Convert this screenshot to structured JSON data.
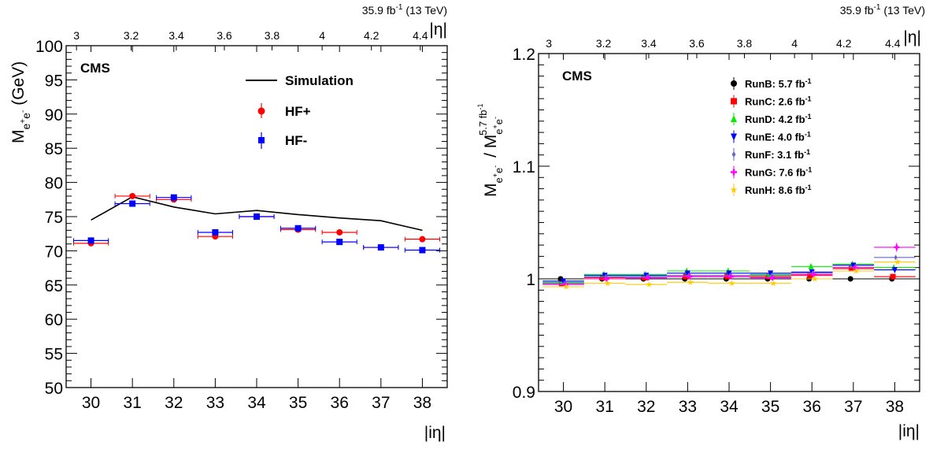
{
  "chart_data": [
    {
      "type": "scatter",
      "experiment_label": "CMS",
      "lumi_label": "35.9 fb",
      "lumi_exp": "-1",
      "energy_label": "(13 TeV)",
      "xlabel": "|iη|",
      "top_xlabel": "|η|",
      "ylabel_main": "M",
      "ylabel_sub": "e",
      "ylabel_sup1": "+",
      "ylabel_sub2": "e",
      "ylabel_sup2": "-",
      "ylabel_units": "(GeV)",
      "xlim": [
        29.4,
        38.6
      ],
      "ylim": [
        50,
        100
      ],
      "x_ticks": [
        "30",
        "31",
        "32",
        "33",
        "34",
        "35",
        "36",
        "37",
        "38"
      ],
      "y_ticks": [
        "50",
        "55",
        "60",
        "65",
        "70",
        "75",
        "80",
        "85",
        "90",
        "95",
        "100"
      ],
      "top_ticks": [
        "3",
        "3.2",
        "3.4",
        "3.6",
        "3.8",
        "4",
        "4.2",
        "4.4"
      ],
      "top_tick_x": [
        29.65,
        30.97,
        32.06,
        33.22,
        34.37,
        35.58,
        36.77,
        37.95
      ],
      "x": [
        30,
        31,
        32,
        33,
        34,
        35,
        36,
        37,
        38
      ],
      "series": [
        {
          "name": "Simulation",
          "type": "line",
          "color": "#000000",
          "values": [
            74.5,
            77.9,
            76.4,
            75.4,
            75.9,
            75.3,
            74.8,
            74.4,
            73.0
          ]
        },
        {
          "name": "HF+",
          "type": "points",
          "marker": "circle",
          "color": "#ff0000",
          "values": [
            71.1,
            78.0,
            77.5,
            72.1,
            75.0,
            73.1,
            72.7,
            70.5,
            71.7
          ]
        },
        {
          "name": "HF-",
          "type": "points",
          "marker": "square",
          "color": "#0000ff",
          "values": [
            71.5,
            76.9,
            77.8,
            72.7,
            75.0,
            73.3,
            71.3,
            70.5,
            70.1
          ]
        }
      ]
    },
    {
      "type": "scatter",
      "experiment_label": "CMS",
      "lumi_label": "35.9 fb",
      "lumi_exp": "-1",
      "energy_label": "(13 TeV)",
      "xlabel": "|iη|",
      "top_xlabel": "|η|",
      "ylabel_num": "M",
      "ylabel_den": "M",
      "ylabel_den_sup": "5.7 fb",
      "ylabel_den_sup_exp": "-1",
      "xlim": [
        29.4,
        38.6
      ],
      "ylim": [
        0.9,
        1.2
      ],
      "x_ticks": [
        "30",
        "31",
        "32",
        "33",
        "34",
        "35",
        "36",
        "37",
        "38"
      ],
      "y_ticks": [
        "0.9",
        "1",
        "1.1",
        "1.2"
      ],
      "top_ticks": [
        "3",
        "3.2",
        "3.4",
        "3.6",
        "3.8",
        "4",
        "4.2",
        "4.4"
      ],
      "top_tick_x": [
        29.65,
        30.97,
        32.06,
        33.22,
        34.37,
        35.58,
        36.77,
        37.95
      ],
      "x": [
        30,
        31,
        32,
        33,
        34,
        35,
        36,
        37,
        38
      ],
      "series": [
        {
          "name": "RunB: 5.7 fb",
          "exp": "-1",
          "marker": "circle",
          "color": "#000000",
          "values": [
            1.0,
            1.0,
            1.0,
            1.0,
            1.0,
            1.0,
            1.0,
            1.0,
            1.0
          ]
        },
        {
          "name": "RunC: 2.6 fb",
          "exp": "-1",
          "marker": "square",
          "color": "#ff0000",
          "values": [
            0.996,
            1.001,
            1.001,
            1.002,
            1.002,
            1.002,
            1.003,
            1.009,
            1.002
          ]
        },
        {
          "name": "RunD: 4.2 fb",
          "exp": "-1",
          "marker": "triangle-up",
          "color": "#00ee00",
          "values": [
            0.997,
            1.004,
            1.004,
            1.007,
            1.007,
            1.004,
            1.011,
            1.013,
            1.01
          ]
        },
        {
          "name": "RunE: 4.0 fb",
          "exp": "-1",
          "marker": "triangle-down",
          "color": "#0000ff",
          "values": [
            0.998,
            1.003,
            1.003,
            1.005,
            1.005,
            1.005,
            1.006,
            1.012,
            1.008
          ]
        },
        {
          "name": "RunF: 3.1 fb",
          "exp": "-1",
          "marker": "diamond",
          "color": "#6666cc",
          "values": [
            0.996,
            1.002,
            1.002,
            1.003,
            1.003,
            1.003,
            1.005,
            1.01,
            1.019
          ]
        },
        {
          "name": "RunG: 7.6 fb",
          "exp": "-1",
          "marker": "cross",
          "color": "#ff00ff",
          "values": [
            0.995,
            1.0,
            1.001,
            1.002,
            1.002,
            1.001,
            1.004,
            1.01,
            1.028
          ]
        },
        {
          "name": "RunH: 8.6 fb",
          "exp": "-1",
          "marker": "star",
          "color": "#ffcc00",
          "values": [
            0.993,
            0.996,
            0.995,
            0.997,
            0.996,
            0.996,
            1.0,
            1.007,
            1.015
          ]
        }
      ]
    }
  ]
}
